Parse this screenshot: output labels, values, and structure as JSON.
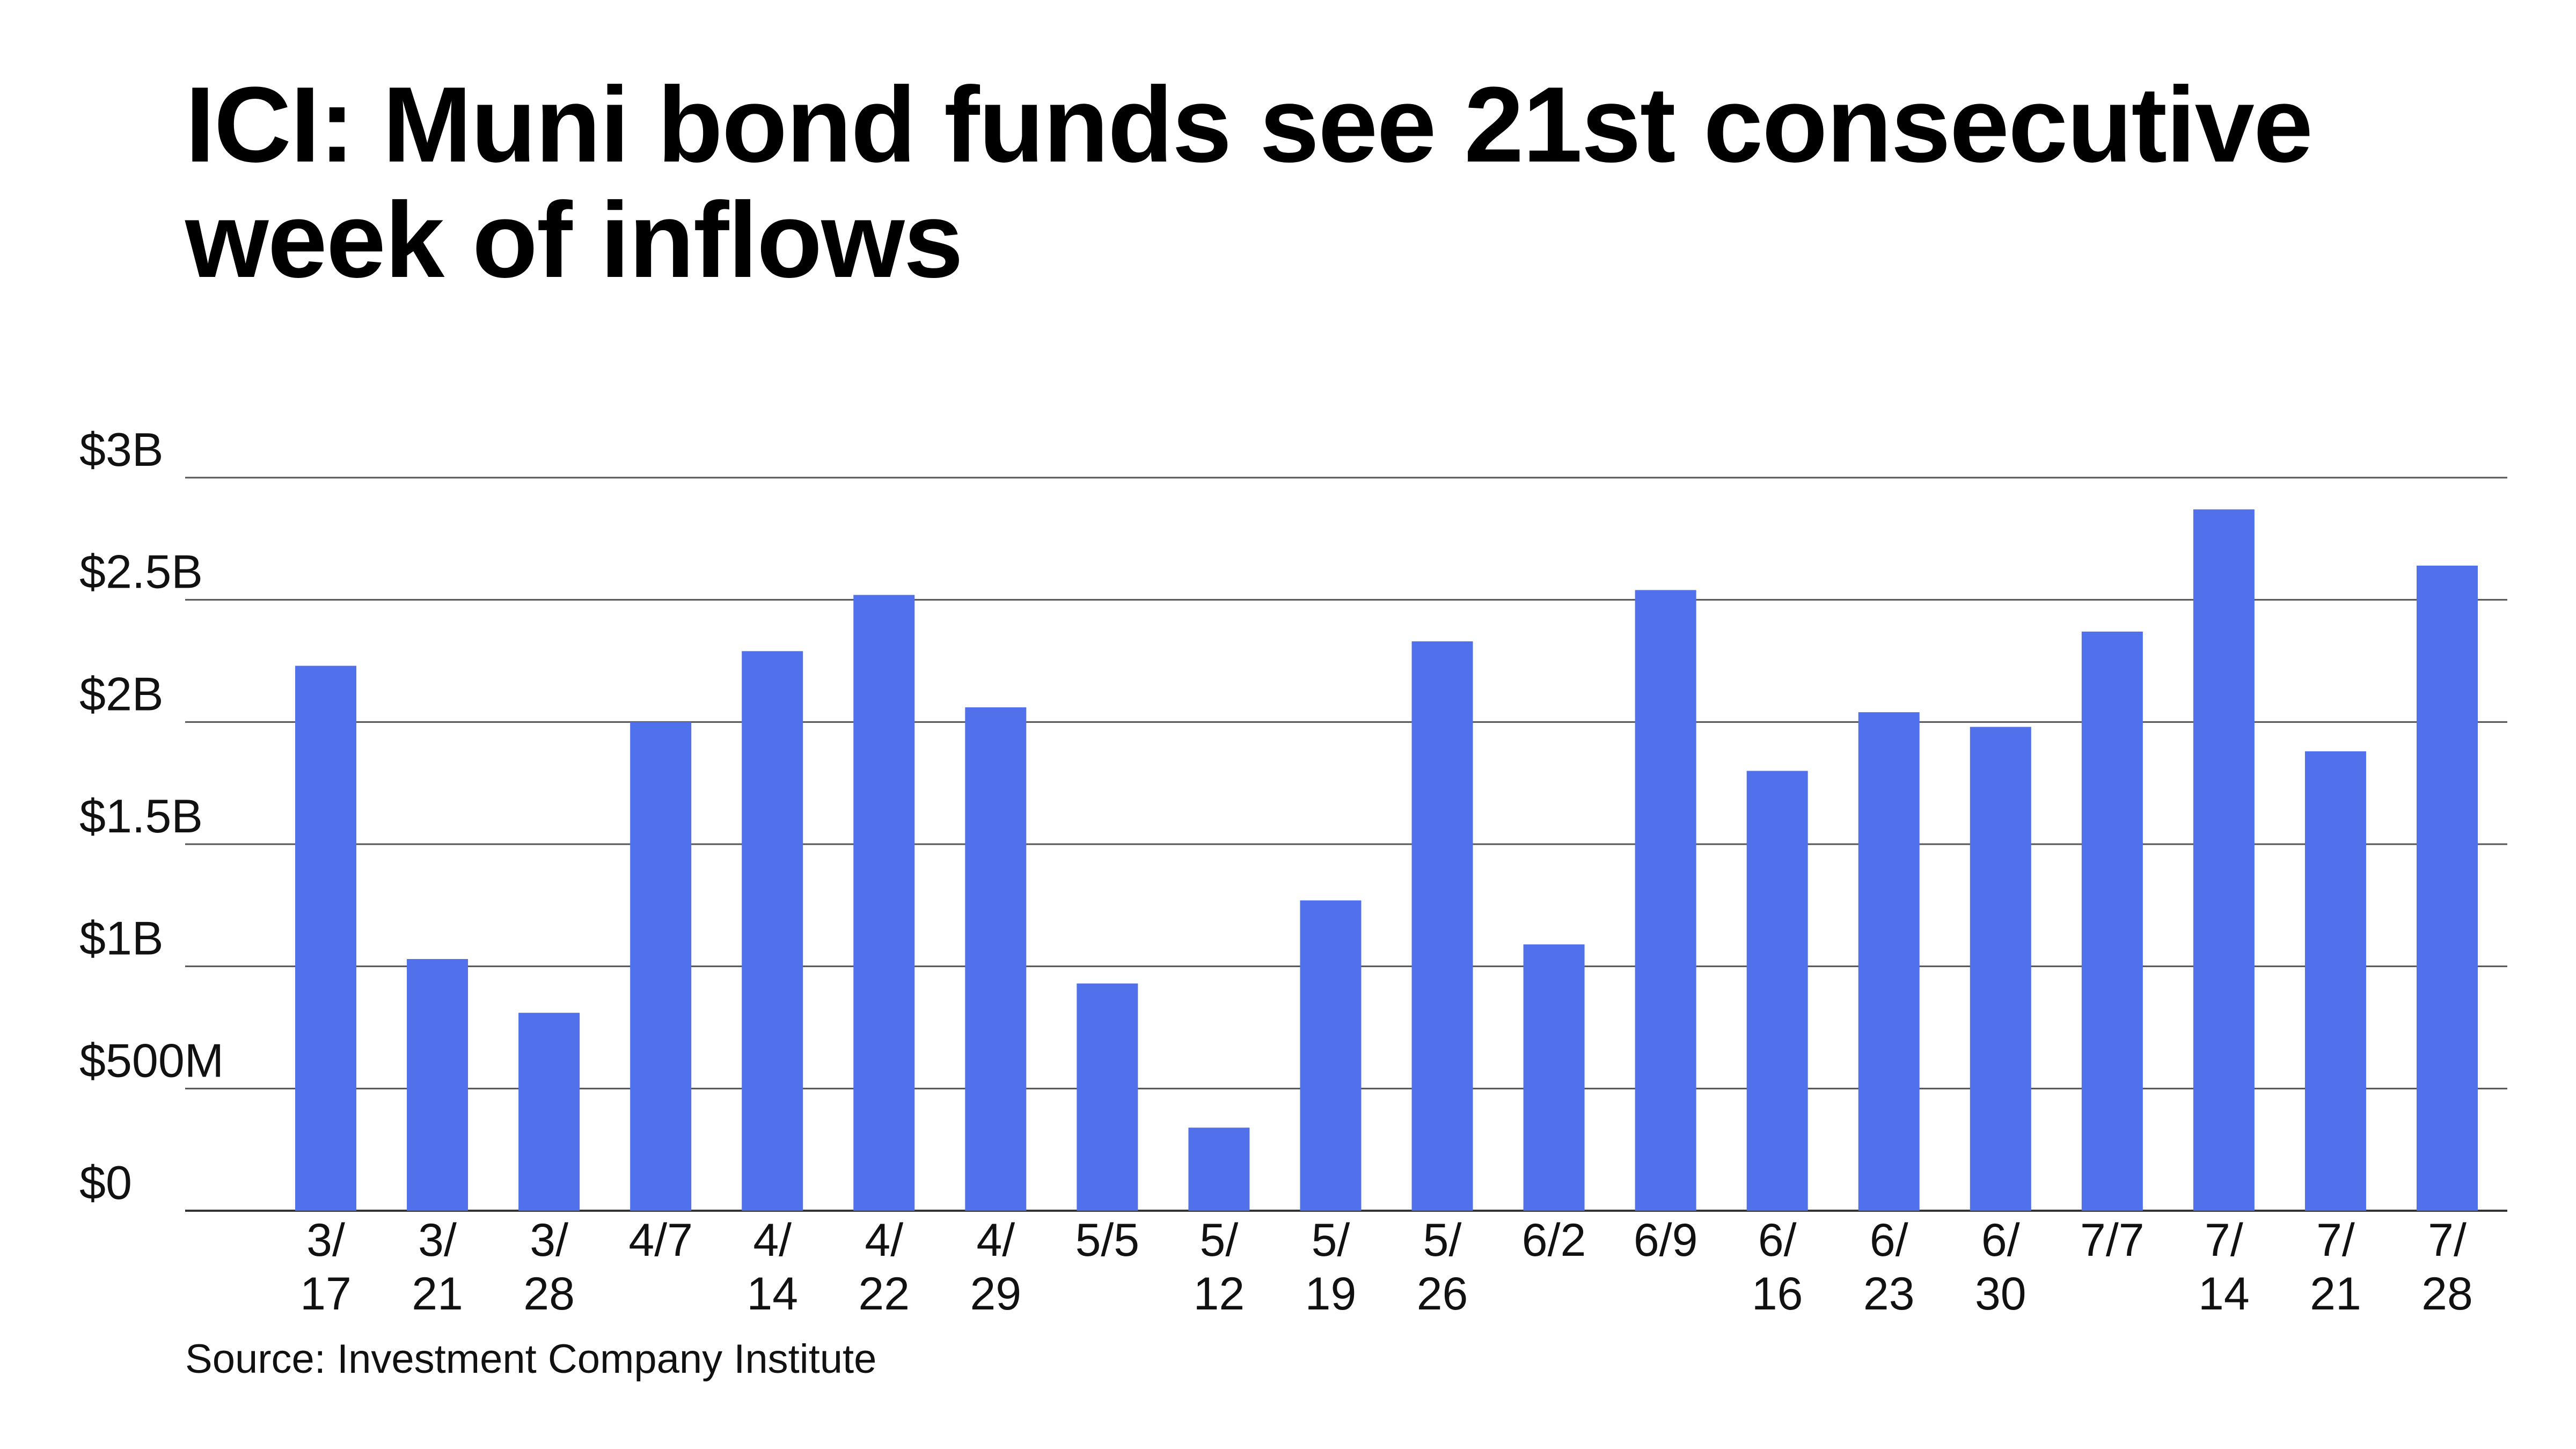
{
  "chart_data": {
    "type": "bar",
    "title": "ICI: Muni bond funds see 21st consecutive week of inflows",
    "xlabel": "",
    "ylabel": "",
    "categories": [
      "3/17",
      "3/21",
      "3/28",
      "4/7",
      "4/14",
      "4/22",
      "4/29",
      "5/5",
      "5/12",
      "5/19",
      "5/26",
      "6/2",
      "6/9",
      "6/16",
      "6/23",
      "6/30",
      "7/7",
      "7/14",
      "7/21",
      "7/28"
    ],
    "category_labels": [
      [
        "3/",
        "17"
      ],
      [
        "3/",
        "21"
      ],
      [
        "3/",
        "28"
      ],
      [
        "4/7"
      ],
      [
        "4/",
        "14"
      ],
      [
        "4/",
        "22"
      ],
      [
        "4/",
        "29"
      ],
      [
        "5/5"
      ],
      [
        "5/",
        "12"
      ],
      [
        "5/",
        "19"
      ],
      [
        "5/",
        "26"
      ],
      [
        "6/2"
      ],
      [
        "6/9"
      ],
      [
        "6/",
        "16"
      ],
      [
        "6/",
        "23"
      ],
      [
        "6/",
        "30"
      ],
      [
        "7/7"
      ],
      [
        "7/",
        "14"
      ],
      [
        "7/",
        "21"
      ],
      [
        "7/",
        "28"
      ]
    ],
    "values": [
      2.23,
      1.03,
      0.81,
      2.0,
      2.29,
      2.52,
      2.06,
      0.93,
      0.34,
      1.27,
      2.33,
      1.09,
      2.54,
      1.8,
      2.04,
      1.98,
      2.37,
      2.87,
      1.88,
      2.64
    ],
    "unit": "billions USD",
    "ylim": [
      0,
      3
    ],
    "yticks": [
      0,
      0.5,
      1,
      1.5,
      2,
      2.5,
      3
    ],
    "ytick_labels": [
      "$0",
      "$500M",
      "$1B",
      "$1.5B",
      "$2B",
      "$2.5B",
      "$3B"
    ],
    "grid": true,
    "bar_color": "#5170ec",
    "grid_color": "#555555",
    "source": "Source: Investment Company Institute"
  }
}
